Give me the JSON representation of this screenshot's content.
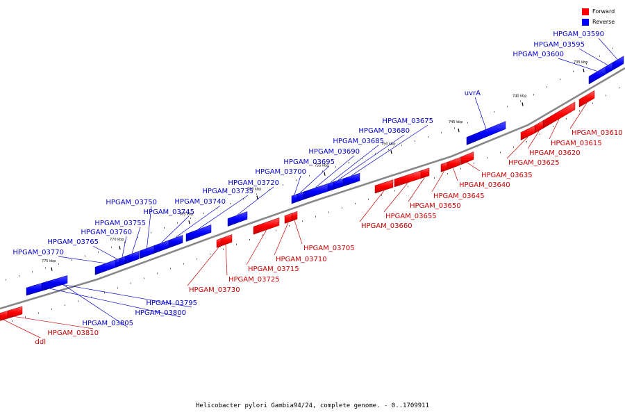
{
  "colors": {
    "forward": "#ff0000",
    "reverse": "#0000ff",
    "backbone": "#888888",
    "label_forward": "#cc0000",
    "label_reverse": "#0000cc"
  },
  "legend": [
    {
      "label": "Forward",
      "color": "#ff0000"
    },
    {
      "label": "Reverse",
      "color": "#0000ff"
    }
  ],
  "caption": "Helicobacter pylori Gambia94/24, complete genome. - 0..1709911",
  "ticks": [
    "735 kbp",
    "740 kbp",
    "745 kbp",
    "750 kbp",
    "755 kbp",
    "760 kbp",
    "765 kbp",
    "770 kbp",
    "775 kbp"
  ],
  "genes": [
    {
      "name": "HPGAM_03590",
      "strand": "reverse"
    },
    {
      "name": "HPGAM_03595",
      "strand": "reverse"
    },
    {
      "name": "HPGAM_03600",
      "strand": "reverse"
    },
    {
      "name": "uvrA",
      "strand": "reverse"
    },
    {
      "name": "HPGAM_03610",
      "strand": "forward"
    },
    {
      "name": "HPGAM_03615",
      "strand": "forward"
    },
    {
      "name": "HPGAM_03620",
      "strand": "forward"
    },
    {
      "name": "HPGAM_03625",
      "strand": "forward"
    },
    {
      "name": "HPGAM_03635",
      "strand": "forward"
    },
    {
      "name": "HPGAM_03640",
      "strand": "forward"
    },
    {
      "name": "HPGAM_03645",
      "strand": "forward"
    },
    {
      "name": "HPGAM_03650",
      "strand": "forward"
    },
    {
      "name": "HPGAM_03655",
      "strand": "forward"
    },
    {
      "name": "HPGAM_03660",
      "strand": "forward"
    },
    {
      "name": "HPGAM_03675",
      "strand": "reverse"
    },
    {
      "name": "HPGAM_03680",
      "strand": "reverse"
    },
    {
      "name": "HPGAM_03685",
      "strand": "reverse"
    },
    {
      "name": "HPGAM_03690",
      "strand": "reverse"
    },
    {
      "name": "HPGAM_03695",
      "strand": "reverse"
    },
    {
      "name": "HPGAM_03700",
      "strand": "reverse"
    },
    {
      "name": "HPGAM_03705",
      "strand": "forward"
    },
    {
      "name": "HPGAM_03710",
      "strand": "forward"
    },
    {
      "name": "HPGAM_03715",
      "strand": "forward"
    },
    {
      "name": "HPGAM_03720",
      "strand": "reverse"
    },
    {
      "name": "HPGAM_03725",
      "strand": "forward"
    },
    {
      "name": "HPGAM_03730",
      "strand": "forward"
    },
    {
      "name": "HPGAM_03735",
      "strand": "reverse"
    },
    {
      "name": "HPGAM_03740",
      "strand": "reverse"
    },
    {
      "name": "HPGAM_03745",
      "strand": "reverse"
    },
    {
      "name": "HPGAM_03750",
      "strand": "reverse"
    },
    {
      "name": "HPGAM_03755",
      "strand": "reverse"
    },
    {
      "name": "HPGAM_03760",
      "strand": "reverse"
    },
    {
      "name": "HPGAM_03765",
      "strand": "reverse"
    },
    {
      "name": "HPGAM_03770",
      "strand": "reverse"
    },
    {
      "name": "HPGAM_03795",
      "strand": "reverse"
    },
    {
      "name": "HPGAM_03800",
      "strand": "reverse"
    },
    {
      "name": "HPGAM_03805",
      "strand": "reverse"
    },
    {
      "name": "HPGAM_03810",
      "strand": "forward"
    },
    {
      "name": "ddl",
      "strand": "forward"
    }
  ]
}
